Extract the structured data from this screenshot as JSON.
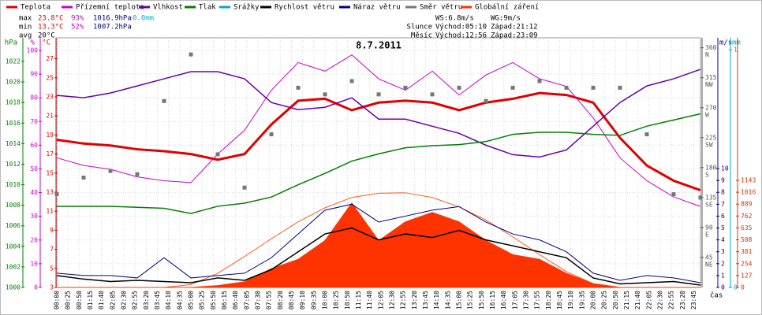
{
  "chart_data": {
    "type": "line",
    "title": "8.7.2011",
    "xlabel": "čas",
    "x": [
      0,
      60,
      120,
      180,
      240,
      300,
      360,
      420,
      480,
      540,
      600,
      660,
      720,
      780,
      840,
      900,
      960,
      1020,
      1080,
      1140,
      1200,
      1260,
      1320,
      1380,
      1440
    ],
    "xlim": [
      0,
      1440
    ],
    "xticks": [
      {
        "value": 0,
        "label": "00:00"
      },
      {
        "value": 25,
        "label": "00:25"
      },
      {
        "value": 50,
        "label": "00:50"
      },
      {
        "value": 75,
        "label": "01:15"
      },
      {
        "value": 100,
        "label": "01:40"
      },
      {
        "value": 125,
        "label": "02:05"
      },
      {
        "value": 150,
        "label": "02:30"
      },
      {
        "value": 175,
        "label": "02:55"
      },
      {
        "value": 200,
        "label": "03:20"
      },
      {
        "value": 225,
        "label": "03:45"
      },
      {
        "value": 250,
        "label": "04:10"
      },
      {
        "value": 275,
        "label": "04:35"
      },
      {
        "value": 300,
        "label": "05:00"
      },
      {
        "value": 325,
        "label": "05:25"
      },
      {
        "value": 350,
        "label": "05:50"
      },
      {
        "value": 375,
        "label": "06:15"
      },
      {
        "value": 400,
        "label": "06:40"
      },
      {
        "value": 425,
        "label": "07:05"
      },
      {
        "value": 450,
        "label": "07:30"
      },
      {
        "value": 475,
        "label": "07:55"
      },
      {
        "value": 500,
        "label": "08:20"
      },
      {
        "value": 525,
        "label": "08:45"
      },
      {
        "value": 550,
        "label": "09:10"
      },
      {
        "value": 575,
        "label": "09:35"
      },
      {
        "value": 600,
        "label": "10:00"
      },
      {
        "value": 625,
        "label": "10:25"
      },
      {
        "value": 650,
        "label": "10:50"
      },
      {
        "value": 675,
        "label": "11:15"
      },
      {
        "value": 700,
        "label": "11:40"
      },
      {
        "value": 725,
        "label": "12:05"
      },
      {
        "value": 750,
        "label": "12:30"
      },
      {
        "value": 775,
        "label": "12:55"
      },
      {
        "value": 800,
        "label": "13:20"
      },
      {
        "value": 825,
        "label": "13:45"
      },
      {
        "value": 850,
        "label": "14:10"
      },
      {
        "value": 875,
        "label": "14:35"
      },
      {
        "value": 900,
        "label": "15:00"
      },
      {
        "value": 925,
        "label": "15:25"
      },
      {
        "value": 950,
        "label": "15:50"
      },
      {
        "value": 975,
        "label": "16:15"
      },
      {
        "value": 1000,
        "label": "16:40"
      },
      {
        "value": 1025,
        "label": "17:05"
      },
      {
        "value": 1050,
        "label": "17:30"
      },
      {
        "value": 1075,
        "label": "17:55"
      },
      {
        "value": 1100,
        "label": "18:20"
      },
      {
        "value": 1125,
        "label": "18:45"
      },
      {
        "value": 1150,
        "label": "19:10"
      },
      {
        "value": 1175,
        "label": "19:35"
      },
      {
        "value": 1200,
        "label": "20:00"
      },
      {
        "value": 1225,
        "label": "20:25"
      },
      {
        "value": 1250,
        "label": "20:50"
      },
      {
        "value": 1275,
        "label": "21:15"
      },
      {
        "value": 1300,
        "label": "21:40"
      },
      {
        "value": 1325,
        "label": "22:05"
      },
      {
        "value": 1350,
        "label": "22:30"
      },
      {
        "value": 1375,
        "label": "22:55"
      },
      {
        "value": 1400,
        "label": "23:20"
      },
      {
        "value": 1425,
        "label": "23:45"
      }
    ],
    "grid": true,
    "axes": {
      "pressure": {
        "label": "hPa",
        "color": "#008000",
        "lim": [
          1000,
          1024.3
        ],
        "ticks": [
          1000,
          1002,
          1004,
          1006,
          1008,
          1010,
          1012,
          1014,
          1016,
          1018,
          1020,
          1022
        ]
      },
      "humidity": {
        "label": "%",
        "color": "#cc00cc",
        "lim": [
          0,
          105.3
        ],
        "ticks": [
          0,
          10,
          20,
          30,
          40,
          50,
          60,
          70,
          80,
          90,
          100
        ]
      },
      "temperature": {
        "label": "°C",
        "color": "#e00000",
        "lim": [
          3,
          29.2
        ],
        "ticks": [
          3,
          5,
          7,
          9,
          11,
          13,
          15,
          17,
          19,
          21,
          23,
          25,
          27
        ]
      },
      "direction": {
        "color": "#555555",
        "lim": [
          0,
          375
        ],
        "ticks": [
          45,
          90,
          135,
          180,
          225,
          270,
          315,
          360
        ],
        "compass": [
          "NE",
          "E",
          "SE",
          "S",
          "SW",
          "W",
          "NW",
          "N"
        ]
      },
      "wind": {
        "label": "m/s",
        "color": "#000080",
        "lim": [
          0,
          21
        ],
        "ticks": [
          0,
          1,
          2,
          3,
          4,
          5,
          6,
          7,
          8,
          9,
          10
        ]
      },
      "rain": {
        "label": "mm",
        "color": "#00aacc",
        "lim": [
          0,
          1.05
        ],
        "ticks": [
          0,
          1
        ]
      },
      "radiation": {
        "color": "#e03000",
        "lim": [
          0,
          2664
        ],
        "ticks": [
          0,
          127,
          254,
          381,
          508,
          635,
          762,
          889,
          1016,
          1143
        ]
      }
    },
    "series": [
      {
        "name": "Teplota",
        "color": "#e00000",
        "axis": "temperature",
        "style": "line",
        "width": 3,
        "values": [
          18.5,
          18.1,
          17.9,
          17.5,
          17.3,
          17.0,
          16.4,
          17.0,
          20.1,
          22.6,
          22.8,
          21.6,
          22.4,
          22.6,
          22.4,
          21.6,
          22.4,
          22.8,
          23.4,
          23.2,
          22.4,
          18.7,
          15.8,
          14.2,
          13.2
        ]
      },
      {
        "name": "Přízemní teplota",
        "color": "#cc00cc",
        "axis": "temperature",
        "style": "line",
        "width": 1,
        "values": [
          16.6,
          15.8,
          15.4,
          14.6,
          14.2,
          14.0,
          17.0,
          19.5,
          23.7,
          26.6,
          25.7,
          27.4,
          24.9,
          23.7,
          25.7,
          23.2,
          25.3,
          26.6,
          24.9,
          24.1,
          20.8,
          16.6,
          14.2,
          12.5,
          11.5
        ]
      },
      {
        "name": "Vlhkost",
        "color": "#6600aa",
        "axis": "humidity",
        "style": "line",
        "width": 1.5,
        "values": [
          81,
          80,
          82,
          85,
          88,
          91,
          91,
          88,
          78,
          75,
          76,
          80,
          71,
          71,
          68,
          65,
          60,
          56,
          55,
          58,
          68,
          78,
          85,
          88,
          92
        ]
      },
      {
        "name": "Tlak",
        "color": "#008000",
        "axis": "pressure",
        "style": "line",
        "width": 1.5,
        "values": [
          1007.9,
          1007.9,
          1007.9,
          1007.8,
          1007.7,
          1007.2,
          1007.9,
          1008.2,
          1008.8,
          1010.0,
          1011.1,
          1012.3,
          1013.0,
          1013.6,
          1013.8,
          1013.9,
          1014.2,
          1014.9,
          1015.1,
          1015.1,
          1014.9,
          1014.8,
          1015.7,
          1016.3,
          1016.9
        ]
      },
      {
        "name": "Srážky",
        "color": "#00aacc",
        "axis": "rain",
        "style": "bar",
        "width": 2,
        "values": [
          0,
          0,
          0,
          0,
          0,
          0,
          0,
          0,
          0,
          0,
          0,
          0,
          0,
          0,
          0,
          0,
          0,
          0,
          0,
          0,
          0,
          0,
          0,
          0,
          0
        ]
      },
      {
        "name": "Globální záření",
        "color": "#ff3300",
        "axis": "radiation",
        "style": "area",
        "width": 1,
        "values": [
          0,
          0,
          0,
          0,
          0,
          0,
          20,
          60,
          200,
          300,
          500,
          900,
          500,
          700,
          800,
          700,
          500,
          350,
          300,
          150,
          40,
          0,
          0,
          0,
          0
        ]
      },
      {
        "name": "Rychlost větru",
        "color": "#000000",
        "axis": "wind",
        "style": "line",
        "width": 1.5,
        "values": [
          1.0,
          0.7,
          0.5,
          0.6,
          0.5,
          0.4,
          0.8,
          0.6,
          1.5,
          3.0,
          4.5,
          5.0,
          4.0,
          4.5,
          4.2,
          4.8,
          4.0,
          3.5,
          3.0,
          2.5,
          0.8,
          0.3,
          0.4,
          0.5,
          0.2
        ]
      },
      {
        "name": "Náraz větru",
        "color": "#000080",
        "axis": "wind",
        "style": "line",
        "width": 1,
        "values": [
          1.2,
          1.0,
          1.0,
          0.8,
          2.5,
          0.8,
          1.0,
          1.2,
          2.5,
          4.5,
          6.5,
          7.0,
          5.5,
          6.0,
          6.5,
          6.8,
          5.5,
          4.5,
          4.0,
          3.0,
          1.2,
          0.6,
          1.0,
          0.8,
          0.4
        ]
      },
      {
        "name": "Směr větru",
        "color": "#777777",
        "axis": "direction",
        "style": "points",
        "width": 1,
        "values": [
          140,
          165,
          175,
          170,
          280,
          350,
          200,
          150,
          230,
          300,
          290,
          310,
          290,
          300,
          290,
          300,
          280,
          300,
          310,
          300,
          300,
          300,
          230,
          140,
          135
        ]
      }
    ],
    "radiation_max": {
      "color": "#ff5a1a",
      "axis": "radiation",
      "values": [
        0,
        0,
        0,
        0,
        0,
        30,
        150,
        330,
        520,
        700,
        850,
        960,
        1005,
        1010,
        960,
        860,
        720,
        540,
        350,
        170,
        40,
        0,
        0,
        0,
        0
      ]
    },
    "legend_order": [
      0,
      1,
      2,
      3,
      4,
      6,
      7,
      8,
      5
    ],
    "stats": [
      {
        "label": "max",
        "cells": [
          "23.8°C",
          "93%",
          "1016.9hPa",
          "0.0mm"
        ]
      },
      {
        "label": "min",
        "cells": [
          "13.3°C",
          "52%",
          "1007.2hPa"
        ]
      },
      {
        "label": "avg",
        "cells": [
          "20°C"
        ]
      }
    ],
    "wind_summary": [
      "WS:6.8m/s",
      "WG:9m/s"
    ],
    "sun": {
      "label": "Slunce",
      "rise": "Východ:05:10",
      "set": "Západ:21:12"
    },
    "moon": {
      "label": "Měsíc",
      "rise": "Východ:12:56",
      "set": "Západ:23:09"
    }
  }
}
